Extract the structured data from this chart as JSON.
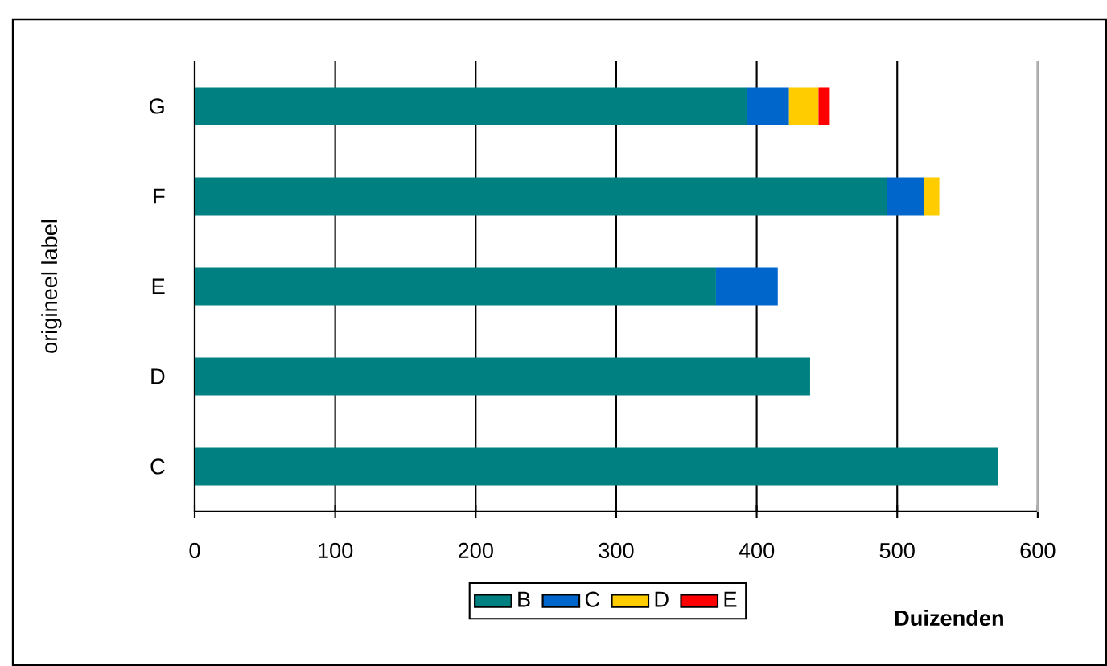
{
  "chart_data": {
    "type": "bar",
    "orientation": "horizontal",
    "stacked": true,
    "xlabel": "Duizenden",
    "ylabel": "origineel label",
    "categories": [
      "G",
      "F",
      "E",
      "D",
      "C"
    ],
    "series": [
      {
        "name": "B",
        "color": "#008080",
        "values": [
          393,
          493,
          371,
          438,
          572
        ]
      },
      {
        "name": "C",
        "color": "#0066cc",
        "values": [
          30,
          26,
          44,
          null,
          null
        ]
      },
      {
        "name": "D",
        "color": "#ffcc00",
        "values": [
          21,
          11,
          null,
          null,
          null
        ]
      },
      {
        "name": "E",
        "color": "#ff0000",
        "values": [
          8,
          null,
          null,
          null,
          null
        ]
      }
    ],
    "xlim": [
      0,
      600
    ],
    "xticks": [
      0,
      100,
      200,
      300,
      400,
      500,
      600
    ],
    "grid": "x",
    "legend": "bottom"
  }
}
